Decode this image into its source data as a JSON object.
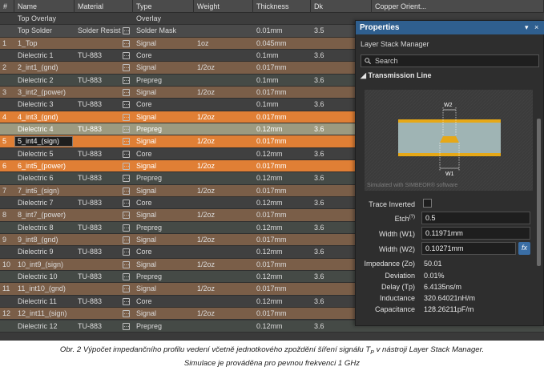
{
  "header": {
    "columns": [
      "#",
      "Name",
      "Material",
      "Type",
      "Weight",
      "Thickness",
      "Dk",
      "Copper Orient..."
    ]
  },
  "rows": [
    {
      "num": "",
      "name": "Top Overlay",
      "material": "",
      "dd": "",
      "type": "Overlay",
      "weight": "",
      "thickness": "",
      "dk": "",
      "style": "overlay"
    },
    {
      "num": "",
      "name": "Top Solder",
      "material": "Solder Resist",
      "dd": "⋯",
      "type": "Solder Mask",
      "weight": "",
      "thickness": "0.01mm",
      "dk": "3.5",
      "style": "solder"
    },
    {
      "num": "1",
      "name": "1_Top",
      "material": "",
      "dd": "⋯",
      "type": "Signal",
      "weight": "1oz",
      "thickness": "0.045mm",
      "dk": "",
      "style": "signal"
    },
    {
      "num": "",
      "name": "Dielectric 1",
      "material": "TU-883",
      "dd": "⋯",
      "type": "Core",
      "weight": "",
      "thickness": "0.1mm",
      "dk": "3.6",
      "style": "dielectric"
    },
    {
      "num": "2",
      "name": "2_int1_(gnd)",
      "material": "",
      "dd": "⋯",
      "type": "Signal",
      "weight": "1/2oz",
      "thickness": "0.017mm",
      "dk": "",
      "style": "signal"
    },
    {
      "num": "",
      "name": "Dielectric 2",
      "material": "TU-883",
      "dd": "⋯",
      "type": "Prepreg",
      "weight": "",
      "thickness": "0.1mm",
      "dk": "3.6",
      "style": "prepreg"
    },
    {
      "num": "3",
      "name": "3_int2_(power)",
      "material": "",
      "dd": "⋯",
      "type": "Signal",
      "weight": "1/2oz",
      "thickness": "0.017mm",
      "dk": "",
      "style": "signal"
    },
    {
      "num": "",
      "name": "Dielectric 3",
      "material": "TU-883",
      "dd": "⋯",
      "type": "Core",
      "weight": "",
      "thickness": "0.1mm",
      "dk": "3.6",
      "style": "dielectric"
    },
    {
      "num": "4",
      "name": "4_int3_(gnd)",
      "material": "",
      "dd": "⋯",
      "type": "Signal",
      "weight": "1/2oz",
      "thickness": "0.017mm",
      "dk": "",
      "style": "hl-signal"
    },
    {
      "num": "",
      "name": "Dielectric 4",
      "material": "TU-883",
      "dd": "⋯",
      "type": "Prepreg",
      "weight": "",
      "thickness": "0.12mm",
      "dk": "3.6",
      "style": "hl-prepreg"
    },
    {
      "num": "5",
      "name": "5_int4_(sign)",
      "material": "",
      "dd": "⋯",
      "type": "Signal",
      "weight": "1/2oz",
      "thickness": "0.017mm",
      "dk": "",
      "style": "hl-signal",
      "editing": true
    },
    {
      "num": "",
      "name": "Dielectric 5",
      "material": "TU-883",
      "dd": "⋯",
      "type": "Core",
      "weight": "",
      "thickness": "0.12mm",
      "dk": "3.6",
      "style": "dielectric"
    },
    {
      "num": "6",
      "name": "6_int5_(power)",
      "material": "",
      "dd": "⋯",
      "type": "Signal",
      "weight": "1/2oz",
      "thickness": "0.017mm",
      "dk": "",
      "style": "hl-signal"
    },
    {
      "num": "",
      "name": "Dielectric 6",
      "material": "TU-883",
      "dd": "⋯",
      "type": "Prepreg",
      "weight": "",
      "thickness": "0.12mm",
      "dk": "3.6",
      "style": "prepreg"
    },
    {
      "num": "7",
      "name": "7_int6_(sign)",
      "material": "",
      "dd": "⋯",
      "type": "Signal",
      "weight": "1/2oz",
      "thickness": "0.017mm",
      "dk": "",
      "style": "signal"
    },
    {
      "num": "",
      "name": "Dielectric 7",
      "material": "TU-883",
      "dd": "⋯",
      "type": "Core",
      "weight": "",
      "thickness": "0.12mm",
      "dk": "3.6",
      "style": "dielectric"
    },
    {
      "num": "8",
      "name": "8_int7_(power)",
      "material": "",
      "dd": "⋯",
      "type": "Signal",
      "weight": "1/2oz",
      "thickness": "0.017mm",
      "dk": "",
      "style": "signal"
    },
    {
      "num": "",
      "name": "Dielectric 8",
      "material": "TU-883",
      "dd": "⋯",
      "type": "Prepreg",
      "weight": "",
      "thickness": "0.12mm",
      "dk": "3.6",
      "style": "prepreg"
    },
    {
      "num": "9",
      "name": "9_int8_(gnd)",
      "material": "",
      "dd": "⋯",
      "type": "Signal",
      "weight": "1/2oz",
      "thickness": "0.017mm",
      "dk": "",
      "style": "signal"
    },
    {
      "num": "",
      "name": "Dielectric 9",
      "material": "TU-883",
      "dd": "⋯",
      "type": "Core",
      "weight": "",
      "thickness": "0.12mm",
      "dk": "3.6",
      "style": "dielectric"
    },
    {
      "num": "10",
      "name": "10_int9_(sign)",
      "material": "",
      "dd": "⋯",
      "type": "Signal",
      "weight": "1/2oz",
      "thickness": "0.017mm",
      "dk": "",
      "style": "signal"
    },
    {
      "num": "",
      "name": "Dielectric 10",
      "material": "TU-883",
      "dd": "⋯",
      "type": "Prepreg",
      "weight": "",
      "thickness": "0.12mm",
      "dk": "3.6",
      "style": "prepreg"
    },
    {
      "num": "11",
      "name": "11_int10_(gnd)",
      "material": "",
      "dd": "⋯",
      "type": "Signal",
      "weight": "1/2oz",
      "thickness": "0.017mm",
      "dk": "",
      "style": "signal"
    },
    {
      "num": "",
      "name": "Dielectric 11",
      "material": "TU-883",
      "dd": "⋯",
      "type": "Core",
      "weight": "",
      "thickness": "0.12mm",
      "dk": "3.6",
      "style": "dielectric"
    },
    {
      "num": "12",
      "name": "12_int11_(sign)",
      "material": "",
      "dd": "⋯",
      "type": "Signal",
      "weight": "1/2oz",
      "thickness": "0.017mm",
      "dk": "",
      "style": "signal"
    },
    {
      "num": "",
      "name": "Dielectric 12",
      "material": "TU-883",
      "dd": "⋯",
      "type": "Prepreg",
      "weight": "",
      "thickness": "0.12mm",
      "dk": "3.6",
      "style": "prepreg"
    }
  ],
  "panel": {
    "title": "Properties",
    "controls": [
      "▾",
      "×"
    ],
    "subtitle": "Layer Stack Manager",
    "search_placeholder": "Search",
    "section": "Transmission Line",
    "diagram": {
      "w2_label": "W2",
      "w1_label": "W1",
      "watermark": "Simulated with SIMBEOR® software",
      "copper_color": "#e6a817",
      "dielectric_color": "#9fb4b4"
    },
    "trace_inverted_label": "Trace Inverted",
    "fields": [
      {
        "label": "Etch",
        "superscript": "(?)",
        "value": "0.5"
      },
      {
        "label": "Width (W1)",
        "value": "0.11971mm"
      },
      {
        "label": "Width (W2)",
        "value": "0.10271mm"
      }
    ],
    "fx_label": "fx",
    "results": [
      {
        "label": "Impedance (Zo)",
        "value": "50.01"
      },
      {
        "label": "Deviation",
        "value": "0.01%"
      },
      {
        "label": "Delay (Tp)",
        "value": "6.4135ns/m"
      },
      {
        "label": "Inductance",
        "value": "320.64021nH/m"
      },
      {
        "label": "Capacitance",
        "value": "128.26211pF/m"
      }
    ]
  },
  "caption": {
    "line1": "Obr. 2  Výpočet impedančního profilu vedení včetně jednotkového zpoždění šíření signálu T",
    "line1_sub": "P",
    "line1_end": " v nástroji Layer Stack Manager.",
    "line2": "Simulace je prováděna pro pevnou frekvenci 1 GHz"
  }
}
